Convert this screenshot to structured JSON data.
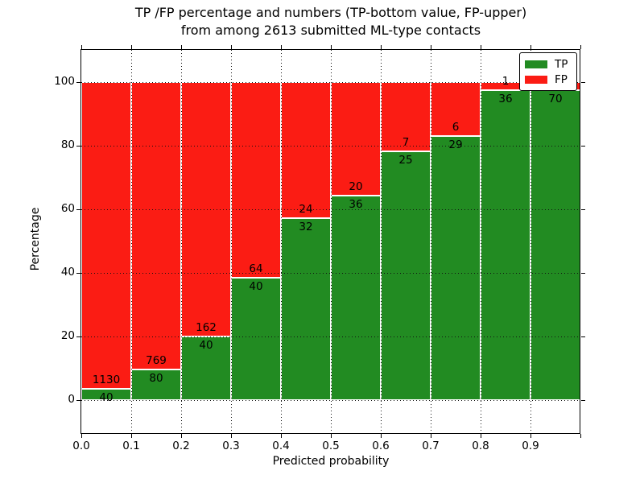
{
  "title": {
    "line1": "TP /FP percentage and numbers (TP-bottom value, FP-upper)",
    "line2": "from among 2613 submitted ML-type contacts"
  },
  "y_axis": {
    "label": "Percentage",
    "tick_labels": [
      "0",
      "20",
      "40",
      "60",
      "80",
      "100"
    ],
    "tick_values": [
      0,
      20,
      40,
      60,
      80,
      100
    ]
  },
  "x_axis": {
    "label": "Predicted probability",
    "tick_labels": [
      "0.0",
      "0.1",
      "0.2",
      "0.3",
      "0.4",
      "0.5",
      "0.6",
      "0.7",
      "0.8",
      "0.9"
    ],
    "tick_values": [
      0,
      0.1,
      0.2,
      0.3,
      0.4,
      0.5,
      0.6,
      0.7,
      0.8,
      0.9
    ]
  },
  "legend": {
    "entries": [
      {
        "label": "TP",
        "color": "#228B22"
      },
      {
        "label": "FP",
        "color": "#FB1C14"
      }
    ],
    "position": "upper right"
  },
  "colors": {
    "tp": "#228B22",
    "fp": "#FB1C14",
    "bar_edge": "#ffffff",
    "grid": "#111111",
    "text": "#000000",
    "background": "#ffffff"
  },
  "chart_data": {
    "type": "bar",
    "stacked": true,
    "grid": true,
    "legend_position": "upper right",
    "title": "TP /FP percentage and numbers (TP-bottom value, FP-upper) from among 2613 submitted ML-type contacts",
    "xlabel": "Predicted probability",
    "ylabel": "Percentage",
    "total_contacts": 2613,
    "xlim": [
      0,
      1
    ],
    "ylim": [
      -10.5,
      110
    ],
    "bins": [
      [
        0.0,
        0.1
      ],
      [
        0.1,
        0.2
      ],
      [
        0.2,
        0.3
      ],
      [
        0.3,
        0.4
      ],
      [
        0.4,
        0.5
      ],
      [
        0.5,
        0.6
      ],
      [
        0.6,
        0.7
      ],
      [
        0.7,
        0.8
      ],
      [
        0.8,
        0.9
      ],
      [
        0.9,
        1.0
      ]
    ],
    "series": [
      {
        "name": "TP",
        "color": "#228B22",
        "counts": [
          40,
          80,
          40,
          40,
          32,
          36,
          25,
          29,
          36,
          70
        ],
        "pct": [
          3.42,
          9.42,
          19.8,
          38.46,
          57.14,
          64.29,
          78.13,
          82.86,
          97.3,
          97.22
        ],
        "labels": [
          "40",
          "80",
          "40",
          "40",
          "32",
          "36",
          "25",
          "29",
          "36",
          "70"
        ]
      },
      {
        "name": "FP",
        "color": "#FB1C14",
        "counts": [
          1130,
          769,
          162,
          64,
          24,
          20,
          7,
          6,
          1,
          null
        ],
        "pct": [
          96.58,
          90.58,
          80.2,
          61.54,
          42.86,
          35.71,
          21.87,
          17.14,
          2.7,
          2.78
        ],
        "labels": [
          "1130",
          "769",
          "162",
          "64",
          "24",
          "20",
          "7",
          "6",
          "1",
          ""
        ]
      }
    ]
  }
}
